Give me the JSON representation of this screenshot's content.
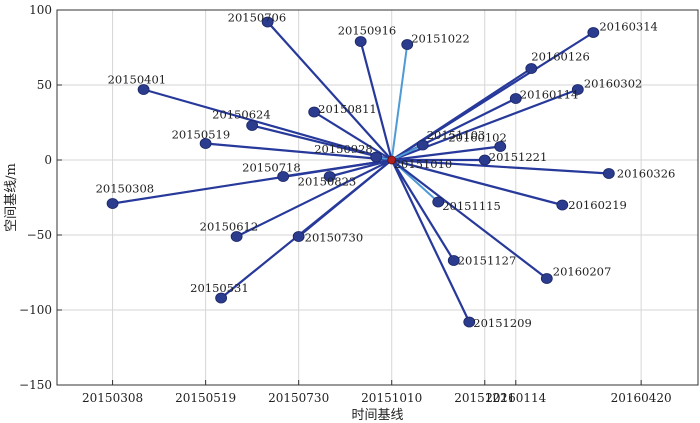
{
  "chart_data": {
    "type": "scatter",
    "title": "",
    "xlabel": "时间基线",
    "ylabel": "空间基线/m",
    "xlim": [
      "2015-01-24",
      "2016-06-03"
    ],
    "ylim": [
      -150,
      100
    ],
    "grid": true,
    "x_ticks": [
      "20150308",
      "20150519",
      "20150730",
      "20151010",
      "20151221",
      "20160114",
      "20160420"
    ],
    "y_ticks": [
      100,
      50,
      0,
      -50,
      -100,
      -150
    ],
    "master": "20151010",
    "colors": {
      "link_dark": "#27399a",
      "link_light": "#4d9ad6",
      "node": "#2b3c8e",
      "master": "#b02020"
    },
    "points": [
      {
        "date": "20150706",
        "x": "2015-07-06",
        "y": 92
      },
      {
        "date": "20150916",
        "x": "2015-09-16",
        "y": 79
      },
      {
        "date": "20151022",
        "x": "2015-10-22",
        "y": 77
      },
      {
        "date": "20160314",
        "x": "2016-03-14",
        "y": 85
      },
      {
        "date": "20160126",
        "x": "2016-01-26",
        "y": 61
      },
      {
        "date": "20160302",
        "x": "2016-03-02",
        "y": 47
      },
      {
        "date": "20150401",
        "x": "2015-04-01",
        "y": 47
      },
      {
        "date": "20160114",
        "x": "2016-01-14",
        "y": 41
      },
      {
        "date": "20150811",
        "x": "2015-08-11",
        "y": 32
      },
      {
        "date": "20150624",
        "x": "2015-06-24",
        "y": 23
      },
      {
        "date": "20150519",
        "x": "2015-05-19",
        "y": 11
      },
      {
        "date": "20151103",
        "x": "2015-11-03",
        "y": 10
      },
      {
        "date": "20160102",
        "x": "2016-01-02",
        "y": 9
      },
      {
        "date": "20150928",
        "x": "2015-09-28",
        "y": 2
      },
      {
        "date": "20151221",
        "x": "2015-12-21",
        "y": 0
      },
      {
        "date": "20150718",
        "x": "2015-07-18",
        "y": -11
      },
      {
        "date": "20150823",
        "x": "2015-08-23",
        "y": -11
      },
      {
        "date": "20160326",
        "x": "2016-03-26",
        "y": -9
      },
      {
        "date": "20151115",
        "x": "2015-11-15",
        "y": -28
      },
      {
        "date": "20150308",
        "x": "2015-03-08",
        "y": -29
      },
      {
        "date": "20160219",
        "x": "2016-02-19",
        "y": -30
      },
      {
        "date": "20150612",
        "x": "2015-06-12",
        "y": -51
      },
      {
        "date": "20150730",
        "x": "2015-07-30",
        "y": -51
      },
      {
        "date": "20151127",
        "x": "2015-11-27",
        "y": -67
      },
      {
        "date": "20160207",
        "x": "2016-02-07",
        "y": -79
      },
      {
        "date": "20150531",
        "x": "2015-05-31",
        "y": -92
      },
      {
        "date": "20151209",
        "x": "2015-12-09",
        "y": -108
      }
    ],
    "light_links": [
      "20151022",
      "20151103",
      "20151115",
      "20150928"
    ],
    "extra_labels": [
      {
        "text": "20151010"
      }
    ]
  }
}
